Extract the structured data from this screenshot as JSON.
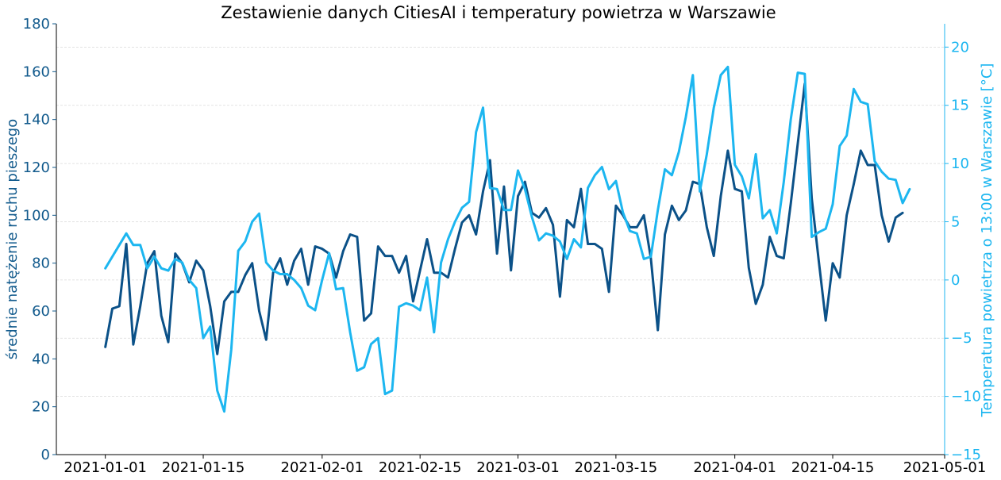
{
  "chart_data": {
    "type": "line",
    "title": "Zestawienie danych CitiesAI i temperatury powietrza w Warszawie",
    "ylabel_left": "średnie natężenie ruchu pieszego",
    "ylabel_right": "Temperatura powietrza o 13:00 w Warszawie [°C]",
    "xlim": [
      "2020-12-25",
      "2021-05-01"
    ],
    "ylim_left": [
      0,
      180
    ],
    "ylim_right": [
      -15,
      22
    ],
    "x_ticks": [
      "2021-01-01",
      "2021-01-15",
      "2021-02-01",
      "2021-02-15",
      "2021-03-01",
      "2021-03-15",
      "2021-04-01",
      "2021-04-15",
      "2021-05-01"
    ],
    "y_ticks_left": [
      0,
      20,
      40,
      60,
      80,
      100,
      120,
      140,
      160,
      180
    ],
    "y_ticks_right": [
      -15,
      -10,
      -5,
      0,
      5,
      10,
      15,
      20
    ],
    "grid": "horizontal dashed (right axis)",
    "start_date": "2021-01-01",
    "colors": {
      "left": "#0b5188",
      "right": "#1cb6f0",
      "left_tick": "#135b8d"
    },
    "series": [
      {
        "axis": "left",
        "values": [
          45,
          61,
          62,
          88,
          46,
          62,
          80,
          85,
          58,
          47,
          84,
          80,
          72,
          81,
          77,
          62,
          42,
          64,
          68,
          68,
          75,
          80,
          60,
          48,
          76,
          82,
          71,
          81,
          86,
          71,
          87,
          86,
          84,
          74,
          85,
          92,
          91,
          56,
          59,
          87,
          83,
          83,
          76,
          83,
          64,
          77,
          90,
          76,
          76,
          74,
          86,
          97,
          100,
          92,
          110,
          123,
          84,
          112,
          77,
          108,
          114,
          101,
          99,
          103,
          96,
          66,
          98,
          95,
          111,
          88,
          88,
          86,
          68,
          104,
          100,
          95,
          95,
          100,
          82,
          52,
          92,
          104,
          98,
          102,
          114,
          113,
          95,
          83,
          108,
          127,
          111,
          110,
          78,
          63,
          71,
          91,
          83,
          82,
          105,
          130,
          155,
          107,
          81,
          56,
          80,
          74,
          100,
          113,
          127,
          121,
          121,
          100,
          89,
          99,
          101
        ]
      },
      {
        "axis": "right",
        "values": [
          1,
          2,
          3,
          4,
          3,
          3,
          1,
          2,
          1,
          0.8,
          1.8,
          1.5,
          0,
          -0.7,
          -5,
          -4,
          -9.5,
          -11.3,
          -6,
          2.5,
          3.3,
          5,
          5.7,
          1.5,
          0.8,
          0.5,
          0.5,
          0,
          -0.7,
          -2.2,
          -2.6,
          0,
          2.3,
          -0.8,
          -0.7,
          -4.5,
          -7.8,
          -7.5,
          -5.5,
          -5,
          -9.8,
          -9.5,
          -2.3,
          -2,
          -2.2,
          -2.6,
          0.2,
          -4.5,
          1.5,
          3.5,
          5,
          6.2,
          6.7,
          12.7,
          14.8,
          7.9,
          7.8,
          6,
          6,
          9.4,
          7.8,
          5.4,
          3.4,
          4,
          3.8,
          3.3,
          1.8,
          3.5,
          2.8,
          7.9,
          9,
          9.7,
          7.8,
          8.5,
          5.8,
          4.2,
          4,
          1.8,
          2,
          6,
          9.5,
          9,
          11,
          14,
          17.6,
          7.6,
          10.8,
          14.8,
          17.6,
          18.3,
          9.9,
          8.9,
          7,
          10.8,
          5.3,
          6,
          4,
          8.4,
          13.8,
          17.8,
          17.7,
          3.7,
          4.1,
          4.4,
          6.5,
          11.5,
          12.4,
          16.4,
          15.3,
          15.1,
          10.2,
          9.3,
          8.7,
          8.6,
          6.6,
          7.8
        ]
      }
    ]
  }
}
